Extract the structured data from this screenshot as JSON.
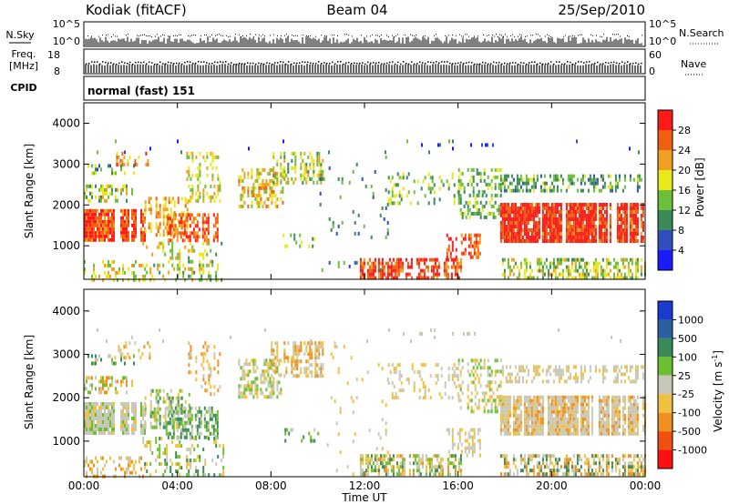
{
  "header": {
    "station": "Kodiak (fitACF)",
    "beam": "Beam 04",
    "date": "25/Sep/2010"
  },
  "panels": {
    "nsky": {
      "label": "N.Sky",
      "right_label": "N.Search",
      "ticks": [
        "10^5",
        "10^0"
      ],
      "ticks_right": [
        "10^5",
        "10^0"
      ]
    },
    "freq": {
      "label_top": "Freq.",
      "label_bottom": "[MHz]",
      "right_label": "Nave",
      "ticks": [
        "18",
        "8"
      ],
      "ticks_right": [
        "60",
        "0"
      ]
    },
    "cpid": {
      "label": "CPID",
      "value": "normal (fast) 151"
    }
  },
  "chart_data": [
    {
      "type": "heatmap",
      "name": "power",
      "ylabel": "Slant Range [km]",
      "ylim": [
        180,
        4500
      ],
      "yticks": [
        "1000",
        "2000",
        "3000",
        "4000"
      ],
      "xlim": [
        0,
        24
      ],
      "colorbar": {
        "label": "Power [dB]",
        "ticks": [
          "4",
          "8",
          "12",
          "16",
          "20",
          "24",
          "28"
        ],
        "colors": [
          "#1b1bff",
          "#2f4fbf",
          "#3a8a5a",
          "#6cbf3a",
          "#e8e81a",
          "#f0a020",
          "#f06010",
          "#ff1a1a"
        ]
      }
    },
    {
      "type": "heatmap",
      "name": "velocity",
      "ylabel": "Slant Range [km]",
      "ylim": [
        180,
        4500
      ],
      "yticks": [
        "1000",
        "2000",
        "3000",
        "4000"
      ],
      "xlim": [
        0,
        24
      ],
      "colorbar": {
        "label": "Velocity [m s",
        "label_sup": "-1",
        "label_end": "]",
        "ticks": [
          "1000",
          "500",
          "100",
          "25",
          "-25",
          "-100",
          "-500",
          "-1000"
        ],
        "colors": [
          "#1a3ad0",
          "#2a5fa0",
          "#3a8a5a",
          "#6cc030",
          "#c8c8b8",
          "#f0c040",
          "#f09020",
          "#f05010",
          "#ff1010"
        ]
      }
    }
  ],
  "xaxis": {
    "label": "Time UT",
    "ticks": [
      "00:00",
      "04:00",
      "08:00",
      "12:00",
      "16:00",
      "20:00",
      "00:00"
    ]
  }
}
